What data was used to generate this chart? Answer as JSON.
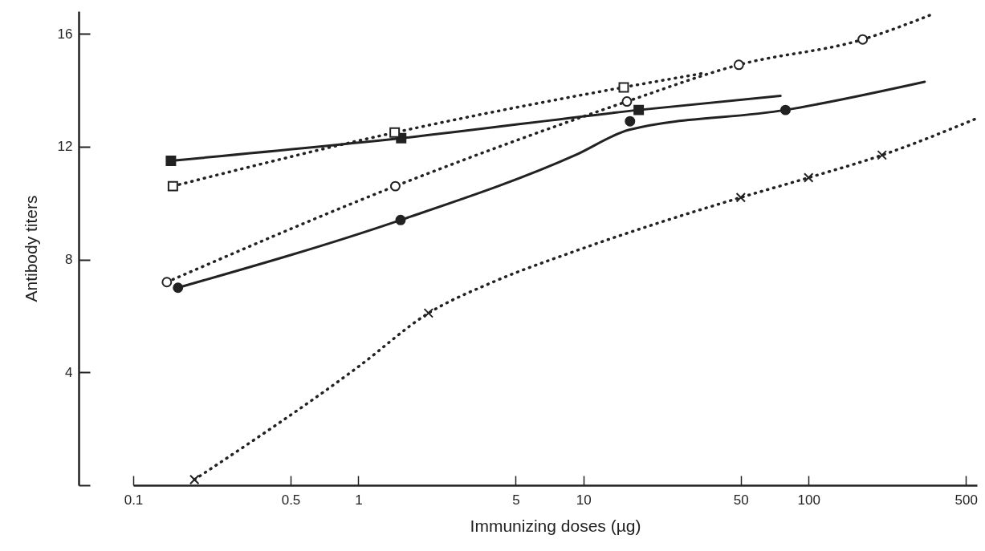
{
  "chart_data": {
    "type": "line",
    "xlabel": "Immunizing doses (µg)",
    "ylabel": "Antibody titers",
    "log": "x",
    "grid": false,
    "xlim": [
      0.1,
      560
    ],
    "xticks": [
      0.1,
      0.5,
      1,
      5,
      10,
      50,
      100,
      500
    ],
    "ylim": [
      0,
      16.8
    ],
    "yticks": [
      {
        "value": 0,
        "label": null
      },
      4,
      8,
      12,
      16
    ],
    "series": [
      {
        "type": "line",
        "color": "#222222",
        "line_style": "solid",
        "x": [
          0.147,
          1.55,
          17.6,
          75
        ],
        "values": [
          11.5,
          12.3,
          13.3,
          13.8
        ]
      },
      {
        "type": "line",
        "color": "#222222",
        "line_style": "dotted",
        "x": [
          0.15,
          1.45,
          15,
          34
        ],
        "values": [
          10.6,
          12.5,
          14.1,
          14.6
        ]
      },
      {
        "type": "line",
        "color": "#222222",
        "line_style": "dotted",
        "x": [
          0.141,
          1.46,
          15.6,
          49,
          174,
          357
        ],
        "values": [
          7.2,
          10.6,
          13.6,
          14.9,
          15.8,
          16.7
        ]
      },
      {
        "type": "line",
        "color": "#222222",
        "line_style": "solid",
        "x": [
          0.158,
          1.54,
          9.2,
          16,
          79,
          328
        ],
        "values": [
          7.0,
          9.4,
          11.7,
          12.6,
          13.3,
          14.3
        ]
      },
      {
        "type": "line",
        "color": "#222222",
        "line_style": "dotted",
        "x": [
          0.187,
          1.0,
          2.05,
          3.96,
          9.2,
          50,
          100,
          212,
          558
        ],
        "values": [
          0.2,
          4.2,
          6.1,
          7.2,
          8.3,
          10.2,
          10.9,
          11.7,
          13.0
        ]
      },
      {
        "type": "scatter",
        "color": "#222222",
        "marker": "square",
        "x": [
          0.147,
          1.55,
          17.6
        ],
        "values": [
          11.5,
          12.3,
          13.3
        ]
      },
      {
        "type": "scatter",
        "color": "#ffffff",
        "marker": "circle",
        "x": [
          0.141,
          1.46,
          15.6,
          49,
          174
        ],
        "values": [
          7.2,
          10.6,
          13.6,
          14.9,
          15.8
        ]
      },
      {
        "type": "scatter",
        "color": "#222222",
        "marker": "circle",
        "x": [
          0.158,
          1.54,
          16.1,
          79
        ],
        "values": [
          7.0,
          9.4,
          12.9,
          13.3
        ]
      },
      {
        "type": "scatter",
        "color": "#222222",
        "marker": "cross",
        "x": [
          0.187,
          2.05,
          50,
          100,
          212
        ],
        "values": [
          0.2,
          6.1,
          10.2,
          10.9,
          11.7
        ]
      },
      {
        "type": "scatter",
        "color": "#ffffff",
        "marker": "square",
        "x": [
          0.15,
          1.45,
          15.1
        ],
        "values": [
          10.6,
          12.5,
          14.1
        ]
      }
    ]
  }
}
